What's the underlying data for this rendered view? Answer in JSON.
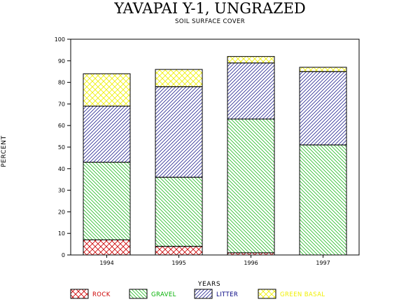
{
  "chart_data": {
    "type": "bar",
    "stacked": true,
    "title": "YAVAPAI Y-1, UNGRAZED",
    "subtitle": "SOIL SURFACE COVER",
    "xlabel": "YEARS",
    "ylabel": "PERCENT",
    "categories": [
      "1994",
      "1995",
      "1996",
      "1997"
    ],
    "ylim": [
      0,
      100
    ],
    "yticks": [
      "0",
      "10",
      "20",
      "30",
      "40",
      "50",
      "60",
      "70",
      "80",
      "90",
      "100"
    ],
    "grid": false,
    "legend_position": "bottom",
    "series": [
      {
        "name": "ROCK",
        "values": [
          7,
          4,
          1,
          0
        ],
        "color": "#cc0000",
        "pattern": "crosshatch"
      },
      {
        "name": "GRAVEL",
        "values": [
          36,
          32,
          62,
          51
        ],
        "color": "#00b000",
        "pattern": "diagonal-down"
      },
      {
        "name": "LITTER",
        "values": [
          26,
          42,
          26,
          34
        ],
        "color": "#000080",
        "pattern": "diagonal-up"
      },
      {
        "name": "GREEN BASAL",
        "values": [
          15,
          8,
          3,
          2
        ],
        "color": "#f0f000",
        "pattern": "crosshatch"
      }
    ]
  }
}
